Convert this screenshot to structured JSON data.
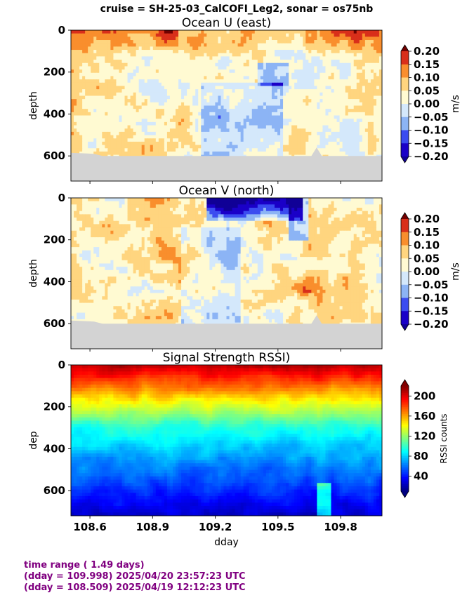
{
  "suptitle": "cruise = SH-25-03_CalCOFI_Leg2,  sonar = os75nb",
  "colors": {
    "bottom_mask": "#d3d3d3",
    "footer_text": "#800080"
  },
  "footer": {
    "line1": "time range ( 1.49 days)",
    "line2": "(dday = 109.998) 2025/04/20 23:57:23 UTC",
    "line3": "(dday = 108.509) 2025/04/19 12:12:23 UTC"
  },
  "chart_data": [
    {
      "type": "heatmap",
      "title": "Ocean U (east)",
      "ylabel": "depth",
      "xlabel": "",
      "x_range": [
        108.509,
        109.998
      ],
      "ylim": [
        720,
        0
      ],
      "y_ticks": [
        "0",
        "200",
        "400",
        "600"
      ],
      "x_ticks": [
        "108.6",
        "108.9",
        "109.2",
        "109.5",
        "109.8"
      ],
      "x_ticklabels_shown": false,
      "colormap": "diverging blue-white-red (discrete)",
      "colorbar": {
        "label": "m/s",
        "ticks": [
          "0.20",
          "0.15",
          "0.10",
          "0.05",
          "0.00",
          "−0.05",
          "−0.10",
          "−0.15",
          "−0.20"
        ],
        "levels": [
          0.2,
          0.15,
          0.1,
          0.05,
          0.0,
          -0.05,
          -0.1,
          -0.15,
          -0.2
        ],
        "range": [
          -0.2,
          0.2
        ],
        "extend": "both"
      },
      "bottom_depth": 600
    },
    {
      "type": "heatmap",
      "title": "Ocean V (north)",
      "ylabel": "depth",
      "xlabel": "",
      "x_range": [
        108.509,
        109.998
      ],
      "ylim": [
        720,
        0
      ],
      "y_ticks": [
        "0",
        "200",
        "400",
        "600"
      ],
      "x_ticks": [
        "108.6",
        "108.9",
        "109.2",
        "109.5",
        "109.8"
      ],
      "x_ticklabels_shown": false,
      "colormap": "diverging blue-white-red (discrete)",
      "colorbar": {
        "label": "m/s",
        "ticks": [
          "0.20",
          "0.15",
          "0.10",
          "0.05",
          "0.00",
          "−0.05",
          "−0.10",
          "−0.15",
          "−0.20"
        ],
        "levels": [
          0.2,
          0.15,
          0.1,
          0.05,
          0.0,
          -0.05,
          -0.1,
          -0.15,
          -0.2
        ],
        "range": [
          -0.2,
          0.2
        ],
        "extend": "both"
      },
      "bottom_depth": 600
    },
    {
      "type": "heatmap",
      "title": "Signal Strength RSSI)",
      "ylabel": "dep",
      "xlabel": "dday",
      "x_range": [
        108.509,
        109.998
      ],
      "ylim": [
        720,
        0
      ],
      "y_ticks": [
        "0",
        "200",
        "400",
        "600"
      ],
      "x_ticks": [
        "108.6",
        "108.9",
        "109.2",
        "109.5",
        "109.8"
      ],
      "x_ticklabels_shown": true,
      "colormap": "jet",
      "colorbar": {
        "label": "RSSI counts",
        "ticks": [
          "200",
          "160",
          "120",
          "80",
          "40"
        ],
        "levels": [
          200,
          160,
          120,
          80,
          40
        ],
        "range": [
          10,
          220
        ],
        "extend": "both"
      }
    }
  ]
}
